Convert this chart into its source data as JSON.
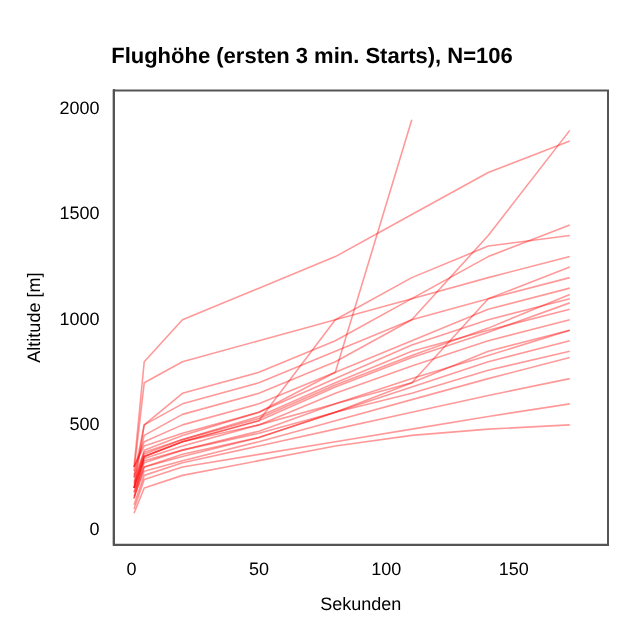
{
  "chart_data": {
    "type": "line",
    "title": "Flughöhe (ersten 3 min. Starts), N=106",
    "xlabel": "Sekunden",
    "ylabel": "Altitude [m]",
    "x": [
      1,
      5,
      20,
      50,
      80,
      110,
      140,
      172
    ],
    "xlim": [
      -7,
      187
    ],
    "ylim": [
      -70,
      2090
    ],
    "xticks": [
      0,
      50,
      100,
      150
    ],
    "yticks": [
      0,
      500,
      1000,
      1500,
      2000
    ],
    "grid": false,
    "legend": false,
    "marker": "none",
    "line_style": "solid",
    "series": [
      {
        "color": "#ff0000",
        "values": [
          150,
          300,
          360,
          440,
          560,
          680,
          800,
          900
        ]
      },
      {
        "color": "#ff0000",
        "values": [
          200,
          340,
          400,
          500,
          650,
          780,
          900,
          1000
        ]
      },
      {
        "color": "#ff0000",
        "values": [
          250,
          370,
          430,
          540,
          700,
          850,
          950,
          1050
        ]
      },
      {
        "color": "#ff0000",
        "values": [
          180,
          320,
          380,
          470,
          600,
          720,
          830,
          950
        ]
      },
      {
        "color": "#ff0000",
        "values": [
          120,
          260,
          320,
          400,
          480,
          560,
          640,
          720
        ]
      },
      {
        "color": "#ff0000",
        "values": [
          100,
          240,
          300,
          360,
          420,
          480,
          540,
          600
        ]
      },
      {
        "color": "#ff0000",
        "values": [
          300,
          400,
          460,
          560,
          720,
          880,
          1000,
          1100
        ]
      },
      {
        "color": "#ff0000",
        "values": [
          220,
          350,
          420,
          520,
          680,
          820,
          940,
          1080
        ]
      },
      {
        "color": "#ff0000",
        "values": [
          160,
          280,
          330,
          420,
          520,
          620,
          720,
          820
        ]
      },
      {
        "color": "#ff0000",
        "values": [
          280,
          700,
          800,
          900,
          1000,
          1100,
          1200,
          1300
        ]
      },
      {
        "color": "#ff0000",
        "values": [
          300,
          800,
          1000,
          1150,
          1300,
          1500,
          1700,
          1850
        ]
      },
      {
        "color": "#ff0000",
        "values": [
          200,
          500,
          650,
          750,
          900,
          1100,
          1300,
          1450
        ]
      },
      {
        "color": "#ff0000",
        "values": [
          250,
          450,
          550,
          650,
          800,
          1000,
          1400,
          1900
        ]
      },
      {
        "color": "#ff0000",
        "values": [
          200,
          380,
          450,
          560,
          750,
          1950,
          null,
          null
        ]
      },
      {
        "color": "#ff0000",
        "values": [
          150,
          350,
          420,
          520,
          1000,
          1200,
          1350,
          1400
        ]
      },
      {
        "color": "#ff0000",
        "values": [
          80,
          200,
          260,
          330,
          400,
          450,
          480,
          500
        ]
      },
      {
        "color": "#ff0000",
        "values": [
          200,
          330,
          380,
          460,
          560,
          650,
          760,
          850
        ]
      },
      {
        "color": "#ff0000",
        "values": [
          300,
          420,
          500,
          600,
          750,
          900,
          1050,
          1150
        ]
      },
      {
        "color": "#ff0000",
        "values": [
          230,
          360,
          430,
          530,
          690,
          830,
          960,
          1120
        ]
      },
      {
        "color": "#ff0000",
        "values": [
          180,
          300,
          350,
          440,
          560,
          700,
          1100,
          1250
        ]
      },
      {
        "color": "#ff0000",
        "values": [
          260,
          500,
          600,
          700,
          850,
          1000,
          1100,
          1200
        ]
      },
      {
        "color": "#ff0000",
        "values": [
          200,
          350,
          420,
          500,
          600,
          700,
          850,
          950
        ]
      }
    ]
  }
}
